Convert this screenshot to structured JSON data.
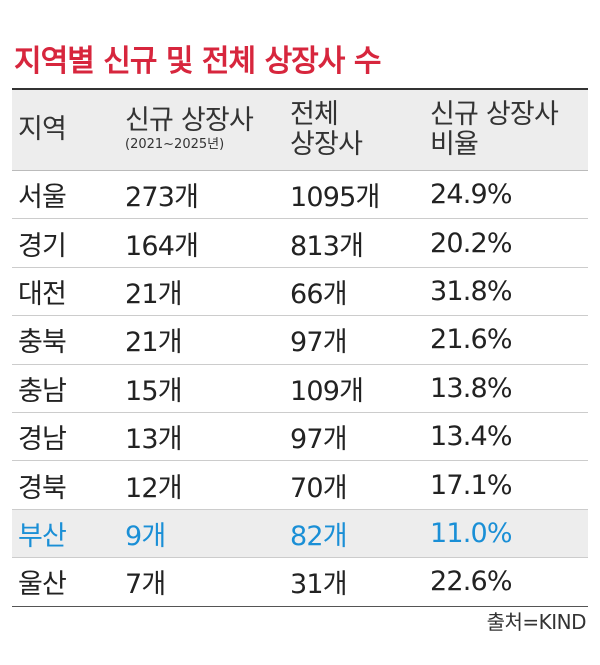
{
  "title": "지역별 신규 및 전체 상장사 수",
  "table": {
    "header": [
      {
        "lines": [
          "지역"
        ]
      },
      {
        "lines": [
          "신규 상장사"
        ],
        "note": "(2021~2025년)"
      },
      {
        "lines": [
          "전체",
          "상장사"
        ]
      },
      {
        "lines": [
          "신규 상장사",
          "비율"
        ]
      }
    ],
    "rows": [
      [
        "서울",
        "273개",
        "1095개",
        "24.9%"
      ],
      [
        "경기",
        "164개",
        "813개",
        "20.2%"
      ],
      [
        "대전",
        "21개",
        "66개",
        "31.8%"
      ],
      [
        "충북",
        "21개",
        "97개",
        "21.6%"
      ],
      [
        "충남",
        "15개",
        "109개",
        "13.8%"
      ],
      [
        "경남",
        "13개",
        "97개",
        "13.4%"
      ],
      [
        "경북",
        "12개",
        "70개",
        "17.1%"
      ],
      [
        "부산",
        "9개",
        "82개",
        "11.0%"
      ],
      [
        "울산",
        "7개",
        "31개",
        "22.6%"
      ]
    ],
    "highlight_row": 7,
    "highlight_color": "#1a8fd6"
  },
  "source": "출처=KIND"
}
